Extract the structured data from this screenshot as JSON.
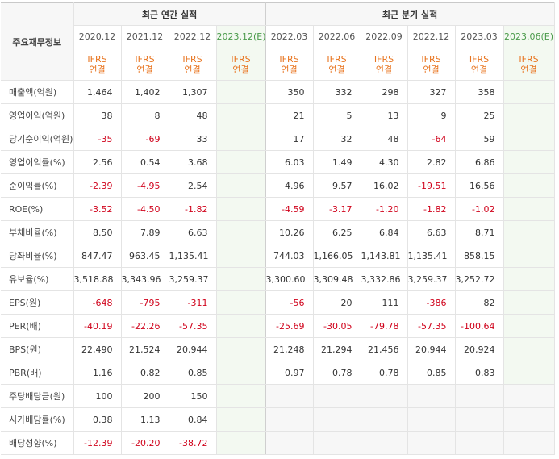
{
  "header": {
    "corner_label": "주요재무정보",
    "annual_group": "최근 연간 실적",
    "quarter_group": "최근 분기 실적",
    "basis_top": "IFRS",
    "basis_bottom": "연결",
    "periods": [
      {
        "label": "2020.12",
        "estimate": false
      },
      {
        "label": "2021.12",
        "estimate": false
      },
      {
        "label": "2022.12",
        "estimate": false
      },
      {
        "label": "2023.12(E)",
        "estimate": true
      },
      {
        "label": "2022.03",
        "estimate": false
      },
      {
        "label": "2022.06",
        "estimate": false
      },
      {
        "label": "2022.09",
        "estimate": false
      },
      {
        "label": "2022.12",
        "estimate": false
      },
      {
        "label": "2023.03",
        "estimate": false
      },
      {
        "label": "2023.06(E)",
        "estimate": true
      }
    ]
  },
  "rows": [
    {
      "label": "매출액(억원)",
      "values": [
        "1,464",
        "1,402",
        "1,307",
        "",
        "350",
        "332",
        "298",
        "327",
        "358",
        ""
      ]
    },
    {
      "label": "영업이익(억원)",
      "values": [
        "38",
        "8",
        "48",
        "",
        "21",
        "5",
        "13",
        "9",
        "25",
        ""
      ]
    },
    {
      "label": "당기순이익(억원)",
      "values": [
        "-35",
        "-69",
        "33",
        "",
        "17",
        "32",
        "48",
        "-64",
        "59",
        ""
      ]
    },
    {
      "label": "영업이익률(%)",
      "values": [
        "2.56",
        "0.54",
        "3.68",
        "",
        "6.03",
        "1.49",
        "4.30",
        "2.82",
        "6.86",
        ""
      ]
    },
    {
      "label": "순이익률(%)",
      "values": [
        "-2.39",
        "-4.95",
        "2.54",
        "",
        "4.96",
        "9.57",
        "16.02",
        "-19.51",
        "16.56",
        ""
      ]
    },
    {
      "label": "ROE(%)",
      "values": [
        "-3.52",
        "-4.50",
        "-1.82",
        "",
        "-4.59",
        "-3.17",
        "-1.20",
        "-1.82",
        "-1.02",
        ""
      ]
    },
    {
      "label": "부채비율(%)",
      "values": [
        "8.50",
        "7.89",
        "6.63",
        "",
        "10.26",
        "6.25",
        "6.84",
        "6.63",
        "8.71",
        ""
      ]
    },
    {
      "label": "당좌비율(%)",
      "values": [
        "847.47",
        "963.45",
        "1,135.41",
        "",
        "744.03",
        "1,166.05",
        "1,143.81",
        "1,135.41",
        "858.15",
        ""
      ]
    },
    {
      "label": "유보율(%)",
      "values": [
        "3,518.88",
        "3,343.96",
        "3,259.37",
        "",
        "3,300.60",
        "3,309.48",
        "3,332.86",
        "3,259.37",
        "3,252.72",
        ""
      ]
    },
    {
      "label": "EPS(원)",
      "values": [
        "-648",
        "-795",
        "-311",
        "",
        "-56",
        "20",
        "111",
        "-386",
        "82",
        ""
      ]
    },
    {
      "label": "PER(배)",
      "values": [
        "-40.19",
        "-22.26",
        "-57.35",
        "",
        "-25.69",
        "-30.05",
        "-79.78",
        "-57.35",
        "-100.64",
        ""
      ]
    },
    {
      "label": "BPS(원)",
      "values": [
        "22,490",
        "21,524",
        "20,944",
        "",
        "21,248",
        "21,294",
        "21,456",
        "20,944",
        "20,924",
        ""
      ]
    },
    {
      "label": "PBR(배)",
      "values": [
        "1.16",
        "0.82",
        "0.85",
        "",
        "0.97",
        "0.78",
        "0.78",
        "0.85",
        "0.83",
        ""
      ]
    },
    {
      "label": "주당배당금(원)",
      "values": [
        "100",
        "200",
        "150",
        "",
        "",
        "",
        "",
        "",
        "",
        ""
      ]
    },
    {
      "label": "시가배당률(%)",
      "values": [
        "0.38",
        "1.13",
        "0.84",
        "",
        "",
        "",
        "",
        "",
        "",
        ""
      ]
    },
    {
      "label": "배당성향(%)",
      "values": [
        "-12.39",
        "-20.20",
        "-38.72",
        "",
        "",
        "",
        "",
        "",
        "",
        ""
      ]
    }
  ]
}
